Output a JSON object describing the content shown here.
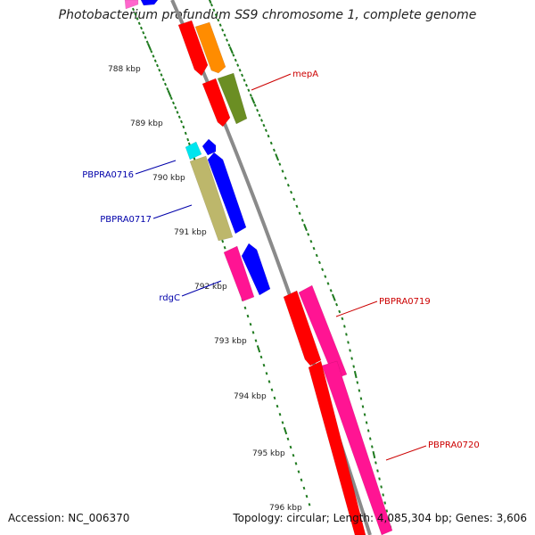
{
  "title": "Photobacterium profundum SS9 chromosome 1, complete genome",
  "accession_text": "Accession: NC_006370",
  "summary_text": "Topology: circular; Length: 4,085,304 bp; Genes: 3,606",
  "colors": {
    "backbone": "#8a8a8a",
    "ticks": "#1e7a1e",
    "label_forward": "#cc0000",
    "label_reverse": "#0000aa"
  },
  "kbp_labels": [
    "788 kbp",
    "789 kbp",
    "790 kbp",
    "791 kbp",
    "792 kbp",
    "793 kbp",
    "794 kbp",
    "795 kbp",
    "796 kbp"
  ],
  "gene_labels": [
    {
      "text": "mepA",
      "strand": "forward"
    },
    {
      "text": "PBPRA0716",
      "strand": "reverse"
    },
    {
      "text": "PBPRA0717",
      "strand": "reverse"
    },
    {
      "text": "rdgC",
      "strand": "reverse"
    },
    {
      "text": "PBPRA0719",
      "strand": "forward"
    },
    {
      "text": "PBPRA0720",
      "strand": "forward"
    }
  ],
  "features": [
    {
      "name": "gene-fwd-1",
      "color": "#ff0000"
    },
    {
      "name": "gene-fwd-2",
      "color": "#ff8c00"
    },
    {
      "name": "gene-fwd-mepA",
      "color": "#ff0000"
    },
    {
      "name": "gene-fwd-mepA-cds",
      "color": "#6b8e23"
    },
    {
      "name": "gene-rev-top-1",
      "color": "#ff66cc"
    },
    {
      "name": "gene-rev-top-2",
      "color": "#0000ff"
    },
    {
      "name": "gene-rev-PBPRA0716-a",
      "color": "#00e5ee"
    },
    {
      "name": "gene-rev-PBPRA0716-b",
      "color": "#0000ff"
    },
    {
      "name": "gene-rev-PBPRA0717-a",
      "color": "#bdb76b"
    },
    {
      "name": "gene-rev-PBPRA0717-b",
      "color": "#0000ff"
    },
    {
      "name": "gene-rev-rdgC-a",
      "color": "#ff1493"
    },
    {
      "name": "gene-rev-rdgC-b",
      "color": "#0000ff"
    },
    {
      "name": "gene-fwd-PBPRA0719-a",
      "color": "#ff0000"
    },
    {
      "name": "gene-fwd-PBPRA0719-b",
      "color": "#ff1493"
    },
    {
      "name": "gene-fwd-PBPRA0720-a",
      "color": "#ff0000"
    },
    {
      "name": "gene-fwd-PBPRA0720-b",
      "color": "#ff1493"
    }
  ]
}
